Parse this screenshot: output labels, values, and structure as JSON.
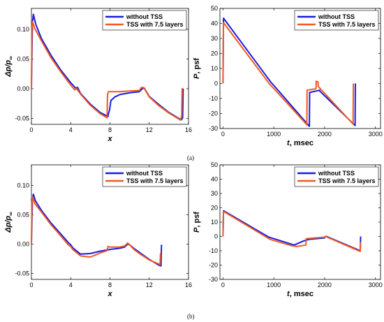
{
  "figure": {
    "caption_a": "(a)",
    "caption_b": "(b)"
  },
  "colors": {
    "without": "#1a1ae0",
    "tss": "#f05a1e"
  },
  "chart_data": [
    {
      "id": "a_left",
      "type": "line",
      "xlabel_main": "x",
      "xlabel_unit": "",
      "ylabel_main": "Δp/p",
      "ylabel_sub": "∞",
      "xlim": [
        0,
        16
      ],
      "ylim": [
        -0.06,
        0.135
      ],
      "xticks": [
        0,
        4,
        8,
        12,
        16
      ],
      "xtick_labels": [
        "0",
        "4",
        "8",
        "12",
        "16"
      ],
      "yticks": [
        -0.05,
        0,
        0.05,
        0.1
      ],
      "ytick_labels": [
        "-0.05",
        "0.00",
        "0.05",
        "0.10"
      ],
      "legend": {
        "position": "top-right",
        "entries": [
          "without TSS",
          "TSS with 7.5 layers"
        ]
      },
      "series": [
        {
          "name": "without TSS",
          "x": [
            0,
            0.1,
            0.2,
            0.45,
            1,
            2,
            3,
            4,
            4.5,
            4.7,
            5,
            6,
            7,
            7.8,
            7.85,
            7.95,
            8.1,
            8.5,
            9,
            10,
            11,
            11.3,
            11.5,
            11.6,
            12,
            13,
            14,
            15,
            15.3,
            15.4,
            15.45
          ],
          "y": [
            0,
            0.11,
            0.125,
            0.108,
            0.085,
            0.056,
            0.031,
            0.01,
            0.001,
            0.002,
            -0.008,
            -0.026,
            -0.04,
            -0.047,
            -0.042,
            -0.036,
            -0.02,
            -0.014,
            -0.01,
            -0.007,
            -0.005,
            0.0,
            0.001,
            -0.002,
            -0.013,
            -0.027,
            -0.04,
            -0.05,
            -0.052,
            -0.049,
            0
          ]
        },
        {
          "name": "TSS with 7.5 layers",
          "x": [
            0,
            0.05,
            0.1,
            0.35,
            1,
            2,
            3,
            4,
            4.4,
            4.6,
            5,
            6,
            7,
            7.7,
            7.75,
            7.85,
            8.5,
            9,
            10,
            11,
            11.2,
            11.4,
            11.5,
            12,
            13,
            14,
            15,
            15.2,
            15.3,
            15.35
          ],
          "y": [
            0,
            0.1,
            0.113,
            0.101,
            0.081,
            0.052,
            0.028,
            0.006,
            -0.002,
            0.0,
            -0.009,
            -0.028,
            -0.042,
            -0.049,
            -0.01,
            -0.005,
            -0.005,
            -0.005,
            -0.004,
            -0.003,
            0.002,
            0.002,
            0.0,
            -0.014,
            -0.029,
            -0.041,
            -0.051,
            -0.053,
            -0.046,
            0.001
          ]
        }
      ]
    },
    {
      "id": "a_right",
      "type": "line",
      "xlabel_main": "t",
      "xlabel_unit": ", msec",
      "ylabel_main": "P",
      "ylabel_sub": "",
      "ylabel_unit": ", psf",
      "xlim": [
        -60,
        3100
      ],
      "ylim": [
        -30,
        50
      ],
      "xticks": [
        0,
        1000,
        2000,
        3000
      ],
      "xtick_labels": [
        "0",
        "1000",
        "2000",
        "3000"
      ],
      "yticks": [
        -30,
        -20,
        -10,
        0,
        10,
        20,
        30,
        40,
        50
      ],
      "ytick_labels": [
        "-30",
        "-20",
        "-10",
        "0",
        "10",
        "20",
        "30",
        "40",
        "50"
      ],
      "legend": {
        "position": "top-right",
        "entries": [
          "without TSS",
          "TSS with 7.5 layers"
        ]
      },
      "series": [
        {
          "name": "without TSS",
          "x": [
            0,
            10,
            950,
            980,
            1700,
            1705,
            1900,
            1905,
            2600,
            2605
          ],
          "y": [
            0,
            43.5,
            0.5,
            -0.5,
            -28.5,
            -6,
            -4.5,
            -5,
            -28,
            0
          ]
        },
        {
          "name": "TSS with 7.5 layers",
          "x": [
            0,
            10,
            920,
            950,
            1650,
            1655,
            1830,
            1835,
            1870,
            1875,
            2560,
            2565
          ],
          "y": [
            0,
            40.5,
            -0.5,
            -1.5,
            -27.5,
            -4.5,
            -3.5,
            1.5,
            1,
            -2,
            -27,
            0
          ]
        }
      ]
    },
    {
      "id": "b_left",
      "type": "line",
      "xlabel_main": "x",
      "xlabel_unit": "",
      "ylabel_main": "Δp/p",
      "ylabel_sub": "∞",
      "xlim": [
        0,
        16
      ],
      "ylim": [
        -0.06,
        0.135
      ],
      "xticks": [
        0,
        4,
        8,
        12,
        16
      ],
      "xtick_labels": [
        "0",
        "4",
        "8",
        "12",
        "16"
      ],
      "yticks": [
        -0.05,
        0,
        0.05,
        0.1
      ],
      "ytick_labels": [
        "-0.05",
        "0.00",
        "0.05",
        "0.10"
      ],
      "legend": {
        "position": "top-right",
        "entries": [
          "without TSS",
          "TSS with 7.5 layers"
        ]
      },
      "series": [
        {
          "name": "without TSS",
          "x": [
            0,
            0.1,
            0.2,
            0.4,
            1,
            2,
            3,
            3.8,
            4,
            4.2,
            5,
            6,
            7,
            8,
            9,
            9.5,
            9.8,
            10,
            10.5,
            11,
            12,
            13,
            13.2,
            13.25
          ],
          "y": [
            0,
            0.075,
            0.085,
            0.074,
            0.058,
            0.036,
            0.017,
            0.002,
            -0.001,
            -0.006,
            -0.017,
            -0.016,
            -0.012,
            -0.009,
            -0.007,
            -0.005,
            0.0,
            -0.001,
            -0.008,
            -0.014,
            -0.026,
            -0.036,
            -0.037,
            -0.001
          ]
        },
        {
          "name": "TSS with 7.5 layers",
          "x": [
            0,
            0.05,
            0.15,
            0.35,
            1,
            2,
            3,
            3.8,
            4,
            4.2,
            5,
            6,
            7,
            7.7,
            7.8,
            8,
            9,
            9.5,
            9.8,
            10,
            10.5,
            11,
            12,
            13,
            13.1,
            13.15
          ],
          "y": [
            0,
            0.07,
            0.08,
            0.069,
            0.055,
            0.033,
            0.014,
            -0.002,
            -0.004,
            -0.009,
            -0.02,
            -0.022,
            -0.015,
            -0.011,
            -0.004,
            -0.005,
            -0.005,
            -0.003,
            0.002,
            -0.001,
            -0.01,
            -0.016,
            -0.027,
            -0.034,
            -0.035,
            -0.015
          ]
        }
      ]
    },
    {
      "id": "b_right",
      "type": "line",
      "xlabel_main": "t",
      "xlabel_unit": ", msec",
      "ylabel_main": "P",
      "ylabel_sub": "",
      "ylabel_unit": ", psf",
      "xlim": [
        -60,
        3100
      ],
      "ylim": [
        -30,
        50
      ],
      "xticks": [
        0,
        1000,
        2000,
        3000
      ],
      "xtick_labels": [
        "0",
        "1000",
        "2000",
        "3000"
      ],
      "yticks": [
        -30,
        -20,
        -10,
        0,
        10,
        20,
        30,
        40,
        50
      ],
      "ytick_labels": [
        "-30",
        "-20",
        "-10",
        "0",
        "10",
        "20",
        "30",
        "40",
        "50"
      ],
      "legend": {
        "position": "top-right",
        "entries": [
          "without TSS",
          "TSS with 7.5 layers"
        ]
      },
      "series": [
        {
          "name": "without TSS",
          "x": [
            0,
            10,
            900,
            950,
            1400,
            1500,
            1600,
            1700,
            2000,
            2020,
            2040,
            2700,
            2710
          ],
          "y": [
            0,
            18,
            -0.5,
            -1,
            -6,
            -4.5,
            -3,
            -2,
            -1,
            0,
            0,
            -10,
            0
          ]
        },
        {
          "name": "TSS with 7.5 layers",
          "x": [
            0,
            10,
            880,
            920,
            1350,
            1450,
            1630,
            1640,
            1650,
            2000,
            2020,
            2050,
            2700,
            2710
          ],
          "y": [
            0,
            17.5,
            -1,
            -2,
            -6.5,
            -7,
            -6,
            -1.5,
            -1.5,
            -0.5,
            0,
            -0.5,
            -10.5,
            -4
          ]
        }
      ]
    }
  ]
}
